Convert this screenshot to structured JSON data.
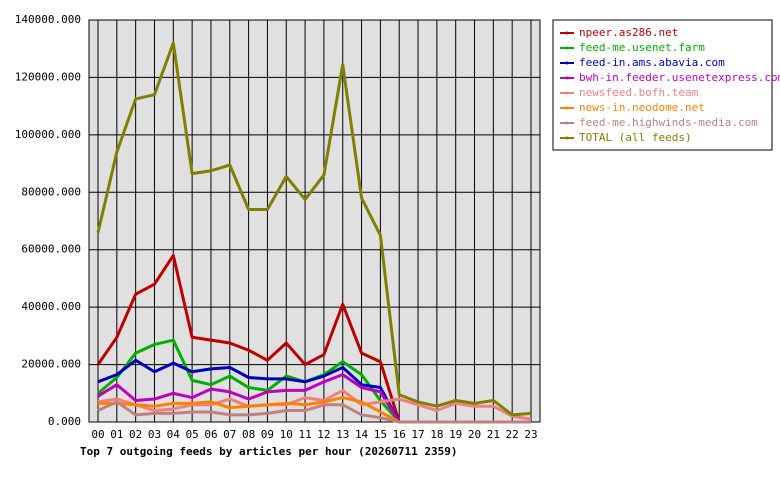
{
  "chart_data": {
    "type": "line",
    "title": "Top 7 outgoing feeds by articles per hour (20260711 2359)",
    "categories": [
      "00",
      "01",
      "02",
      "03",
      "04",
      "05",
      "06",
      "07",
      "08",
      "09",
      "10",
      "11",
      "12",
      "13",
      "14",
      "15",
      "16",
      "17",
      "18",
      "19",
      "20",
      "21",
      "22",
      "23"
    ],
    "ylim": [
      0,
      140000
    ],
    "yticks": [
      {
        "value": 0,
        "label": "0.000"
      },
      {
        "value": 20000,
        "label": "20000.000"
      },
      {
        "value": 40000,
        "label": "40000.000"
      },
      {
        "value": 60000,
        "label": "60000.000"
      },
      {
        "value": 80000,
        "label": "80000.000"
      },
      {
        "value": 100000,
        "label": "100000.000"
      },
      {
        "value": 120000,
        "label": "120000.000"
      },
      {
        "value": 140000,
        "label": "140000.000"
      }
    ],
    "grid": true,
    "legend": "top-right",
    "series": [
      {
        "name": "npeer.as286.net",
        "color": "#c00000",
        "values": [
          20000,
          29500,
          44500,
          48000,
          58000,
          29500,
          28500,
          27500,
          25000,
          21500,
          27500,
          20000,
          23500,
          41000,
          24000,
          21000,
          0,
          0,
          0,
          0,
          0,
          0,
          0,
          0
        ]
      },
      {
        "name": "feed-me.usenet.farm",
        "color": "#00b000",
        "values": [
          10000,
          15500,
          24000,
          27000,
          28500,
          14500,
          13000,
          16000,
          12000,
          11000,
          16000,
          14000,
          16500,
          21000,
          16500,
          7500,
          0,
          0,
          0,
          0,
          0,
          0,
          0,
          0
        ]
      },
      {
        "name": "feed-in.ams.abavia.com",
        "color": "#0000c0",
        "values": [
          14000,
          16500,
          21500,
          17500,
          20500,
          17500,
          18500,
          19000,
          15500,
          15000,
          15000,
          14000,
          16000,
          19000,
          13000,
          12000,
          0,
          0,
          0,
          0,
          0,
          0,
          0,
          0
        ]
      },
      {
        "name": "bwh-in.feeder.usenetexpress.com",
        "color": "#c000c0",
        "values": [
          9000,
          13000,
          7500,
          8000,
          10000,
          8500,
          11500,
          10500,
          8000,
          10500,
          11000,
          11000,
          14000,
          16500,
          12000,
          10500,
          0,
          0,
          0,
          0,
          0,
          0,
          0,
          0
        ]
      },
      {
        "name": "newsfeed.bofh.team",
        "color": "#f08080",
        "values": [
          7000,
          8000,
          6000,
          4000,
          4500,
          6000,
          6000,
          8000,
          5500,
          6000,
          6000,
          8500,
          7500,
          11000,
          6000,
          7000,
          8000,
          6000,
          4000,
          6500,
          5500,
          5500,
          2000,
          1000
        ]
      },
      {
        "name": "news-in.neodome.net",
        "color": "#ff8000",
        "values": [
          6500,
          6500,
          6000,
          5500,
          6500,
          6500,
          7000,
          5000,
          5500,
          6000,
          6500,
          6000,
          7000,
          8500,
          7000,
          3500,
          0,
          0,
          0,
          0,
          0,
          0,
          0,
          0
        ]
      },
      {
        "name": "feed-me.highwinds-media.com",
        "color": "#c08080",
        "values": [
          4000,
          7000,
          2500,
          3000,
          3000,
          3500,
          3500,
          2500,
          2500,
          3000,
          4000,
          4000,
          6000,
          6000,
          2500,
          1500,
          0,
          0,
          0,
          0,
          0,
          0,
          0,
          0
        ]
      },
      {
        "name": "TOTAL (all feeds)",
        "color": "#808000",
        "values": [
          66000,
          94000,
          112500,
          114000,
          132000,
          86500,
          87500,
          89500,
          74000,
          74000,
          85500,
          77500,
          86000,
          124500,
          78000,
          65000,
          9500,
          7000,
          5500,
          7500,
          6500,
          7500,
          2500,
          3000
        ]
      }
    ]
  }
}
